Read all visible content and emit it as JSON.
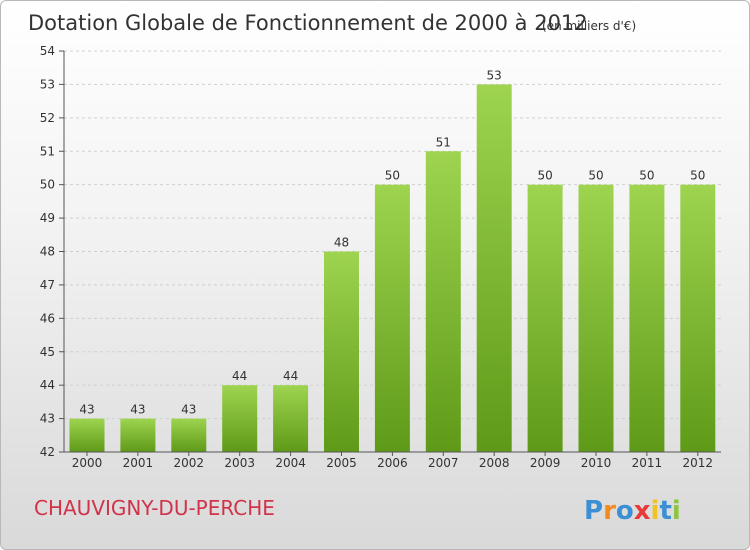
{
  "chart_data": {
    "type": "bar",
    "title": "Dotation Globale de Fonctionnement de 2000 à 2012",
    "subtitle": "(en milliers d'€)",
    "categories": [
      "2000",
      "2001",
      "2002",
      "2003",
      "2004",
      "2005",
      "2006",
      "2007",
      "2008",
      "2009",
      "2010",
      "2011",
      "2012"
    ],
    "values": [
      43,
      43,
      43,
      44,
      44,
      48,
      50,
      51,
      53,
      50,
      50,
      50,
      50
    ],
    "ylim": [
      42,
      54
    ],
    "yticks": [
      42,
      43,
      44,
      45,
      46,
      47,
      48,
      49,
      50,
      51,
      52,
      53,
      54
    ],
    "grid": true,
    "bar_color": "#7fb83a"
  },
  "commune": "CHAUVIGNY-DU-PERCHE",
  "logo": {
    "text": "Proxiti",
    "letter_colors": [
      "#3b8fd4",
      "#f28b1e",
      "#3b8fd4",
      "#e83a3a",
      "#f2c21e",
      "#3b8fd4",
      "#8cc63f"
    ]
  }
}
